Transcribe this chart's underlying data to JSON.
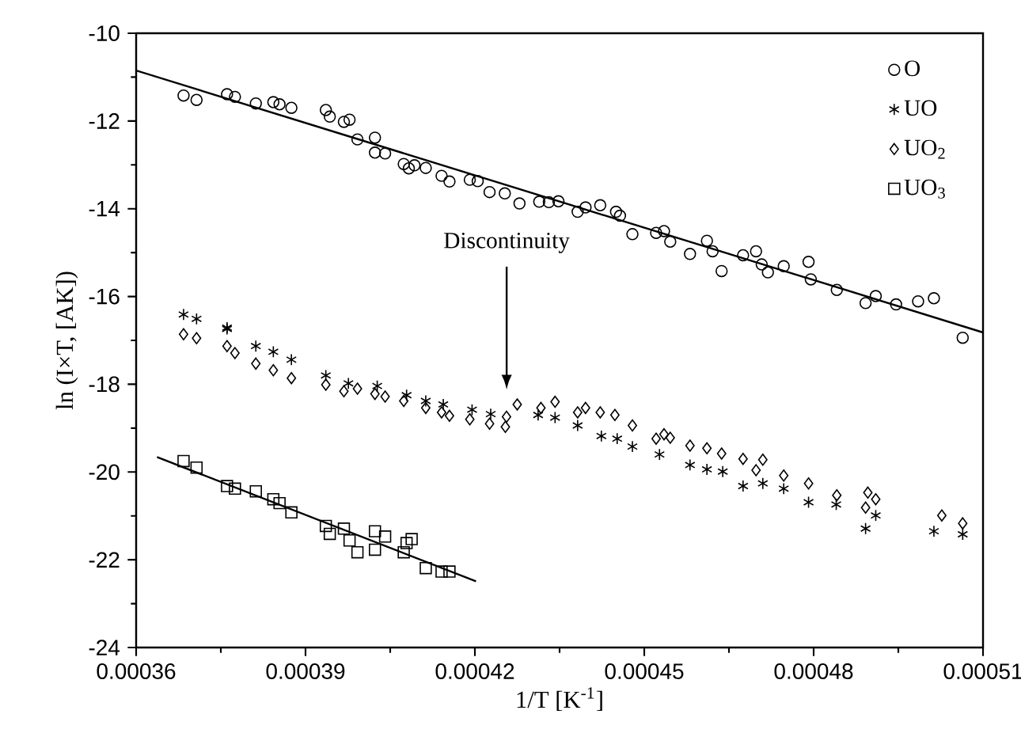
{
  "chart_data": {
    "type": "scatter",
    "xlabel": "1/T [K$^{-1}$]",
    "ylabel": "ln (I×T, [AK])",
    "xlim": [
      0.00036,
      0.00051
    ],
    "ylim": [
      -24,
      -10
    ],
    "xticks": [
      0.00036,
      0.00039,
      0.00042,
      0.00045,
      0.00048,
      0.00051
    ],
    "yticks": [
      -24,
      -22,
      -20,
      -18,
      -16,
      -14,
      -12,
      -10
    ],
    "legend": "top right",
    "annotations": [
      "Discontinuity"
    ],
    "series": [
      {
        "name": "O",
        "marker": "circle",
        "color": "#000000",
        "x": [
          0.0003684,
          0.0003707,
          0.0003761,
          0.0003775,
          0.0003812,
          0.0003843,
          0.0003854,
          0.0003875,
          0.0003936,
          0.0003943,
          0.0003968,
          0.0003978,
          0.0003992,
          0.0004023,
          0.0004023,
          0.0004041,
          0.0004074,
          0.0004083,
          0.0004093,
          0.0004113,
          0.0004141,
          0.0004155,
          0.0004191,
          0.0004205,
          0.0004226,
          0.0004253,
          0.0004279,
          0.0004314,
          0.0004331,
          0.0004348,
          0.0004382,
          0.0004396,
          0.0004422,
          0.000445,
          0.0004457,
          0.0004479,
          0.0004521,
          0.0004535,
          0.0004546,
          0.0004581,
          0.0004611,
          0.0004621,
          0.0004637,
          0.0004675,
          0.0004698,
          0.0004708,
          0.0004719,
          0.0004747,
          0.0004791,
          0.0004795,
          0.0004841,
          0.0004892,
          0.000491,
          0.0004946,
          0.0004985,
          0.0005013,
          0.0005064
        ],
        "values": [
          -11.42,
          -11.52,
          -11.39,
          -11.45,
          -11.6,
          -11.57,
          -11.62,
          -11.7,
          -11.75,
          -11.9,
          -12.02,
          -11.97,
          -12.42,
          -12.38,
          -12.72,
          -12.74,
          -12.98,
          -13.08,
          -13.01,
          -13.07,
          -13.25,
          -13.38,
          -13.34,
          -13.37,
          -13.62,
          -13.65,
          -13.88,
          -13.84,
          -13.85,
          -13.83,
          -14.07,
          -13.97,
          -13.92,
          -14.07,
          -14.16,
          -14.58,
          -14.55,
          -14.51,
          -14.75,
          -15.03,
          -14.73,
          -14.97,
          -15.42,
          -15.06,
          -14.97,
          -15.27,
          -15.45,
          -15.31,
          -15.21,
          -15.61,
          -15.85,
          -16.15,
          -15.99,
          -16.18,
          -16.11,
          -16.04,
          -16.94
        ]
      },
      {
        "name": "UO",
        "marker": "cross",
        "color": "#000000",
        "x": [
          0.0003684,
          0.0003707,
          0.0003761,
          0.0003761,
          0.0003812,
          0.0003843,
          0.0003875,
          0.0003936,
          0.0003976,
          0.0004027,
          0.0004079,
          0.0004113,
          0.0004144,
          0.0004195,
          0.0004228,
          0.0004312,
          0.0004342,
          0.0004382,
          0.0004424,
          0.0004452,
          0.0004479,
          0.0004527,
          0.0004581,
          0.0004611,
          0.0004639,
          0.0004675,
          0.000471,
          0.0004747,
          0.0004791,
          0.000484,
          0.0004892,
          0.000491,
          0.0005013,
          0.0005064
        ],
        "values": [
          -16.41,
          -16.51,
          -16.74,
          -16.71,
          -17.13,
          -17.26,
          -17.44,
          -17.8,
          -17.98,
          -18.04,
          -18.25,
          -18.38,
          -18.46,
          -18.58,
          -18.68,
          -18.7,
          -18.76,
          -18.94,
          -19.18,
          -19.24,
          -19.42,
          -19.6,
          -19.84,
          -19.94,
          -19.99,
          -20.32,
          -20.26,
          -20.38,
          -20.69,
          -20.74,
          -21.29,
          -20.99,
          -21.35,
          -21.42
        ]
      },
      {
        "name": "UO$_{2}$",
        "marker": "diamond",
        "color": "#000000",
        "x": [
          0.0003684,
          0.0003707,
          0.0003761,
          0.0003775,
          0.0003812,
          0.0003843,
          0.0003875,
          0.0003936,
          0.0003968,
          0.0003992,
          0.0004023,
          0.0004041,
          0.0004074,
          0.0004113,
          0.0004141,
          0.0004155,
          0.0004191,
          0.0004226,
          0.0004254,
          0.0004256,
          0.0004275,
          0.0004317,
          0.0004342,
          0.0004382,
          0.0004396,
          0.0004422,
          0.0004448,
          0.0004479,
          0.0004521,
          0.0004535,
          0.0004546,
          0.0004581,
          0.0004611,
          0.0004637,
          0.0004675,
          0.0004698,
          0.000471,
          0.0004747,
          0.0004791,
          0.0004841,
          0.0004896,
          0.0004892,
          0.000491,
          0.0005027,
          0.0005064
        ],
        "values": [
          -16.86,
          -16.95,
          -17.13,
          -17.29,
          -17.53,
          -17.68,
          -17.86,
          -18.01,
          -18.16,
          -18.1,
          -18.22,
          -18.28,
          -18.38,
          -18.54,
          -18.64,
          -18.72,
          -18.8,
          -18.9,
          -18.97,
          -18.74,
          -18.46,
          -18.54,
          -18.4,
          -18.64,
          -18.54,
          -18.64,
          -18.7,
          -18.94,
          -19.24,
          -19.14,
          -19.22,
          -19.4,
          -19.46,
          -19.58,
          -19.7,
          -19.96,
          -19.72,
          -20.08,
          -20.26,
          -20.53,
          -20.47,
          -20.81,
          -20.62,
          -20.99,
          -21.17
        ]
      },
      {
        "name": "UO$_{3}$",
        "marker": "square",
        "color": "#000000",
        "x": [
          0.0003684,
          0.0003707,
          0.0003761,
          0.0003775,
          0.0003812,
          0.0003843,
          0.0003854,
          0.0003875,
          0.0003936,
          0.0003943,
          0.0003968,
          0.0003978,
          0.0003992,
          0.0004023,
          0.0004023,
          0.0004041,
          0.0004074,
          0.0004079,
          0.0004088,
          0.0004113,
          0.0004141,
          0.0004155
        ],
        "values": [
          -19.75,
          -19.9,
          -20.32,
          -20.38,
          -20.44,
          -20.62,
          -20.71,
          -20.92,
          -21.23,
          -21.41,
          -21.29,
          -21.56,
          -21.83,
          -21.35,
          -21.77,
          -21.47,
          -21.83,
          -21.62,
          -21.53,
          -22.19,
          -22.27,
          -22.27
        ]
      },
      {
        "type": "line",
        "color": "#000000",
        "x": [
          0.00036,
          0.00051
        ],
        "values": [
          -10.85,
          -16.82
        ]
      },
      {
        "type": "line",
        "color": "#000000",
        "x": [
          0.0003637,
          0.0004202
        ],
        "values": [
          -19.66,
          -22.49
        ]
      }
    ]
  }
}
